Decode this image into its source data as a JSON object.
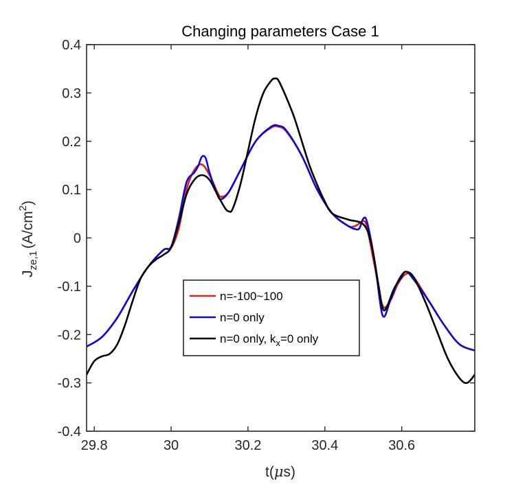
{
  "chart_data": {
    "type": "line",
    "title": "Changing parameters Case 1",
    "xlabel": {
      "base": "t(",
      "mu": "μ",
      "unit": "s)"
    },
    "ylabel": {
      "base": "J",
      "sub": "ze,1",
      "unit": "(A/cm",
      "sup": "2",
      "close": ")"
    },
    "xlim": [
      29.78,
      30.79
    ],
    "ylim": [
      -0.4,
      0.4
    ],
    "xticks": [
      29.8,
      30,
      30.2,
      30.4,
      30.6
    ],
    "xtick_labels": [
      "29.8",
      "30",
      "30.2",
      "30.4",
      "30.6"
    ],
    "yticks": [
      -0.4,
      -0.3,
      -0.2,
      -0.1,
      0,
      0.1,
      0.2,
      0.3,
      0.4
    ],
    "ytick_labels": [
      "-0.4",
      "-0.3",
      "-0.2",
      "-0.1",
      "0",
      "0.1",
      "0.2",
      "0.3",
      "0.4"
    ],
    "legend": {
      "position": "lower-center",
      "entries": [
        {
          "text": "n=-100~100"
        },
        {
          "text": "n=0 only"
        },
        {
          "pre": "n=0 only, k",
          "sub": "x",
          "post": "=0 only"
        }
      ]
    },
    "series": [
      {
        "name": "n=-100~100",
        "color": "#e41a1c",
        "points": [
          [
            29.78,
            -0.225
          ],
          [
            29.82,
            -0.205
          ],
          [
            29.86,
            -0.165
          ],
          [
            29.9,
            -0.11
          ],
          [
            29.94,
            -0.06
          ],
          [
            29.98,
            -0.025
          ],
          [
            30.0,
            -0.02
          ],
          [
            30.02,
            0.02
          ],
          [
            30.04,
            0.1
          ],
          [
            30.06,
            0.14
          ],
          [
            30.08,
            0.152
          ],
          [
            30.1,
            0.13
          ],
          [
            30.12,
            0.095
          ],
          [
            30.13,
            0.085
          ],
          [
            30.15,
            0.095
          ],
          [
            30.18,
            0.14
          ],
          [
            30.22,
            0.2
          ],
          [
            30.26,
            0.228
          ],
          [
            30.28,
            0.23
          ],
          [
            30.3,
            0.22
          ],
          [
            30.34,
            0.17
          ],
          [
            30.38,
            0.1
          ],
          [
            30.42,
            0.05
          ],
          [
            30.46,
            0.025
          ],
          [
            30.48,
            0.025
          ],
          [
            30.5,
            0.035
          ],
          [
            30.51,
            0.02
          ],
          [
            30.53,
            -0.06
          ],
          [
            30.55,
            -0.14
          ],
          [
            30.57,
            -0.13
          ],
          [
            30.59,
            -0.095
          ],
          [
            30.61,
            -0.075
          ],
          [
            30.63,
            -0.08
          ],
          [
            30.67,
            -0.13
          ],
          [
            30.71,
            -0.18
          ],
          [
            30.75,
            -0.22
          ],
          [
            30.79,
            -0.233
          ]
        ]
      },
      {
        "name": "n=0 only",
        "color": "#0a0adc",
        "points": [
          [
            29.78,
            -0.225
          ],
          [
            29.82,
            -0.205
          ],
          [
            29.86,
            -0.165
          ],
          [
            29.9,
            -0.11
          ],
          [
            29.94,
            -0.06
          ],
          [
            29.98,
            -0.025
          ],
          [
            30.0,
            -0.018
          ],
          [
            30.02,
            0.04
          ],
          [
            30.04,
            0.115
          ],
          [
            30.06,
            0.135
          ],
          [
            30.07,
            0.148
          ],
          [
            30.08,
            0.168
          ],
          [
            30.09,
            0.165
          ],
          [
            30.1,
            0.135
          ],
          [
            30.12,
            0.09
          ],
          [
            30.13,
            0.08
          ],
          [
            30.15,
            0.095
          ],
          [
            30.18,
            0.14
          ],
          [
            30.22,
            0.2
          ],
          [
            30.26,
            0.23
          ],
          [
            30.28,
            0.232
          ],
          [
            30.3,
            0.222
          ],
          [
            30.34,
            0.17
          ],
          [
            30.38,
            0.1
          ],
          [
            30.42,
            0.05
          ],
          [
            30.46,
            0.025
          ],
          [
            30.48,
            0.018
          ],
          [
            30.49,
            0.02
          ],
          [
            30.5,
            0.04
          ],
          [
            30.51,
            0.032
          ],
          [
            30.53,
            -0.05
          ],
          [
            30.55,
            -0.16
          ],
          [
            30.57,
            -0.13
          ],
          [
            30.59,
            -0.09
          ],
          [
            30.61,
            -0.07
          ],
          [
            30.63,
            -0.085
          ],
          [
            30.67,
            -0.13
          ],
          [
            30.71,
            -0.18
          ],
          [
            30.75,
            -0.22
          ],
          [
            30.79,
            -0.233
          ]
        ]
      },
      {
        "name": "n=0 only, kx=0 only",
        "color": "#000000",
        "points": [
          [
            29.78,
            -0.283
          ],
          [
            29.8,
            -0.255
          ],
          [
            29.82,
            -0.245
          ],
          [
            29.84,
            -0.24
          ],
          [
            29.86,
            -0.22
          ],
          [
            29.88,
            -0.18
          ],
          [
            29.9,
            -0.13
          ],
          [
            29.92,
            -0.085
          ],
          [
            29.94,
            -0.06
          ],
          [
            29.96,
            -0.045
          ],
          [
            29.98,
            -0.035
          ],
          [
            30.0,
            -0.02
          ],
          [
            30.02,
            0.03
          ],
          [
            30.04,
            0.09
          ],
          [
            30.06,
            0.12
          ],
          [
            30.08,
            0.13
          ],
          [
            30.1,
            0.12
          ],
          [
            30.12,
            0.09
          ],
          [
            30.14,
            0.062
          ],
          [
            30.15,
            0.055
          ],
          [
            30.16,
            0.06
          ],
          [
            30.18,
            0.11
          ],
          [
            30.2,
            0.18
          ],
          [
            30.22,
            0.25
          ],
          [
            30.24,
            0.3
          ],
          [
            30.26,
            0.325
          ],
          [
            30.27,
            0.33
          ],
          [
            30.28,
            0.325
          ],
          [
            30.3,
            0.29
          ],
          [
            30.32,
            0.25
          ],
          [
            30.34,
            0.2
          ],
          [
            30.36,
            0.15
          ],
          [
            30.38,
            0.11
          ],
          [
            30.4,
            0.075
          ],
          [
            30.42,
            0.05
          ],
          [
            30.46,
            0.038
          ],
          [
            30.5,
            0.028
          ],
          [
            30.52,
            -0.01
          ],
          [
            30.54,
            -0.1
          ],
          [
            30.55,
            -0.145
          ],
          [
            30.56,
            -0.145
          ],
          [
            30.58,
            -0.105
          ],
          [
            30.6,
            -0.08
          ],
          [
            30.61,
            -0.07
          ],
          [
            30.63,
            -0.08
          ],
          [
            30.66,
            -0.13
          ],
          [
            30.69,
            -0.19
          ],
          [
            30.72,
            -0.25
          ],
          [
            30.75,
            -0.29
          ],
          [
            30.77,
            -0.3
          ],
          [
            30.79,
            -0.283
          ]
        ]
      }
    ]
  }
}
